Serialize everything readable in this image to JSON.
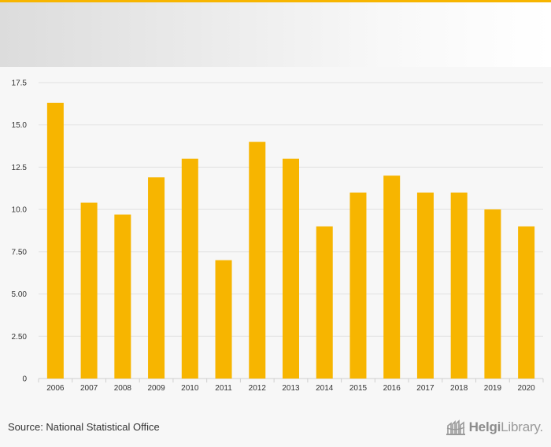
{
  "chart_data": {
    "type": "bar",
    "title": "",
    "xlabel": "",
    "ylabel": "",
    "categories": [
      "2006",
      "2007",
      "2008",
      "2009",
      "2010",
      "2011",
      "2012",
      "2013",
      "2014",
      "2015",
      "2016",
      "2017",
      "2018",
      "2019",
      "2020"
    ],
    "values": [
      16.3,
      10.4,
      9.7,
      11.9,
      13.0,
      7.0,
      14.0,
      13.0,
      9.0,
      11.0,
      12.0,
      11.0,
      11.0,
      10.0,
      9.0
    ],
    "ylim": [
      0,
      17.5
    ],
    "yticks": [
      0,
      2.5,
      5,
      7.5,
      10,
      12.5,
      15,
      17.5
    ],
    "ytick_labels": [
      "0",
      "2.50",
      "5.00",
      "7.50",
      "10.0",
      "12.5",
      "15.0",
      "17.5"
    ],
    "bar_color": "#f7b500",
    "grid": true
  },
  "footer": {
    "source": "Source: National Statistical Office",
    "brand_bold": "Helgi",
    "brand_rest": "Library."
  },
  "colors": {
    "accent": "#f7b500",
    "grid": "#e2e2e2",
    "axis": "#cfcfcf"
  }
}
